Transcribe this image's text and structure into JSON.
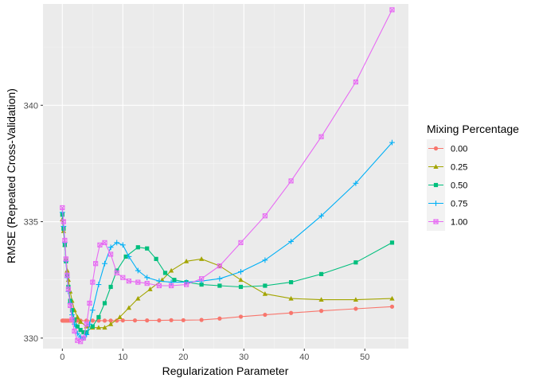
{
  "chart_data": {
    "type": "line",
    "title": "",
    "xlabel": "Regularization Parameter",
    "ylabel": "RMSE (Repeated Cross-Validation)",
    "xlim": [
      -3.2,
      57.2
    ],
    "ylim": [
      329.55,
      344.35
    ],
    "x_ticks": [
      0,
      10,
      20,
      30,
      40,
      50
    ],
    "x_tick_labels": [
      "0",
      "10",
      "20",
      "30",
      "40",
      "50"
    ],
    "y_ticks": [
      330,
      335,
      340
    ],
    "y_tick_labels": [
      "330",
      "335",
      "340"
    ],
    "grid": true,
    "legend": {
      "title": "Mixing Percentage",
      "placement": "right"
    },
    "series": [
      {
        "name": "0.00",
        "color": "#F8766D",
        "marker": "circle",
        "x": [
          0.0,
          0.1,
          0.2,
          0.4,
          0.6,
          0.8,
          1.0,
          1.3,
          1.6,
          2.0,
          2.5,
          3.0,
          4.0,
          5.0,
          6.0,
          7.0,
          8.0,
          9.0,
          10.0,
          12.0,
          14.0,
          16.0,
          18.0,
          20.0,
          23.0,
          26.0,
          29.5,
          33.5,
          37.8,
          42.8,
          48.5,
          54.5
        ],
        "y": [
          330.75,
          330.75,
          330.75,
          330.75,
          330.75,
          330.75,
          330.75,
          330.75,
          330.75,
          330.75,
          330.75,
          330.75,
          330.75,
          330.75,
          330.75,
          330.75,
          330.75,
          330.75,
          330.76,
          330.76,
          330.76,
          330.76,
          330.77,
          330.77,
          330.78,
          330.84,
          330.92,
          331.0,
          331.08,
          331.17,
          331.26,
          331.35
        ]
      },
      {
        "name": "0.25",
        "color": "#A3A500",
        "marker": "triangle",
        "x": [
          0.0,
          0.2,
          0.4,
          0.6,
          0.8,
          1.0,
          1.3,
          1.6,
          2.0,
          2.5,
          3.0,
          4.0,
          5.0,
          6.0,
          7.0,
          8.0,
          9.5,
          11.0,
          12.5,
          14.5,
          16.5,
          18.0,
          20.5,
          23.0,
          26.0,
          29.5,
          33.5,
          37.8,
          42.8,
          48.5,
          54.5
        ],
        "y": [
          335.1,
          334.6,
          334.0,
          333.4,
          332.9,
          332.5,
          332.0,
          331.6,
          331.2,
          330.9,
          330.7,
          330.5,
          330.45,
          330.45,
          330.45,
          330.6,
          330.9,
          331.3,
          331.7,
          332.1,
          332.5,
          332.9,
          333.3,
          333.4,
          333.1,
          332.5,
          331.9,
          331.7,
          331.65,
          331.65,
          331.7
        ]
      },
      {
        "name": "0.50",
        "color": "#00BF7D",
        "marker": "square",
        "x": [
          0.0,
          0.2,
          0.4,
          0.6,
          0.8,
          1.0,
          1.3,
          1.6,
          2.0,
          2.5,
          3.0,
          3.5,
          4.0,
          5.0,
          6.0,
          7.0,
          8.0,
          9.0,
          10.5,
          12.5,
          14.0,
          15.5,
          17.0,
          18.5,
          20.5,
          23.0,
          26.0,
          29.5,
          33.5,
          37.8,
          42.8,
          48.5,
          54.5
        ],
        "y": [
          335.3,
          334.7,
          334.0,
          333.3,
          332.7,
          332.2,
          331.6,
          331.2,
          330.8,
          330.5,
          330.35,
          330.25,
          330.25,
          330.5,
          330.9,
          331.5,
          332.2,
          332.9,
          333.5,
          333.9,
          333.85,
          333.4,
          332.8,
          332.5,
          332.4,
          332.3,
          332.25,
          332.2,
          332.25,
          332.4,
          332.75,
          333.25,
          334.1
        ]
      },
      {
        "name": "0.75",
        "color": "#00B0F6",
        "marker": "plus",
        "x": [
          0.0,
          0.2,
          0.4,
          0.6,
          0.8,
          1.0,
          1.3,
          1.6,
          2.0,
          2.5,
          3.0,
          3.5,
          4.0,
          4.5,
          5.0,
          6.0,
          7.0,
          8.0,
          9.0,
          10.0,
          11.0,
          12.5,
          14.0,
          16.0,
          18.0,
          20.5,
          23.0,
          26.0,
          29.5,
          33.5,
          37.8,
          42.8,
          48.5,
          54.5
        ],
        "y": [
          335.4,
          334.8,
          334.1,
          333.3,
          332.6,
          332.0,
          331.5,
          331.0,
          330.6,
          330.2,
          330.05,
          330.0,
          330.15,
          330.6,
          331.2,
          332.3,
          333.2,
          333.9,
          334.1,
          334.0,
          333.5,
          332.9,
          332.6,
          332.45,
          332.4,
          332.4,
          332.45,
          332.55,
          332.85,
          333.35,
          334.15,
          335.25,
          336.65,
          338.4
        ]
      },
      {
        "name": "1.00",
        "color": "#E76BF3",
        "marker": "boxx",
        "x": [
          0.0,
          0.2,
          0.4,
          0.6,
          0.8,
          1.0,
          1.3,
          1.6,
          2.0,
          2.5,
          3.0,
          3.5,
          4.0,
          4.5,
          5.0,
          5.5,
          6.2,
          7.0,
          8.0,
          9.0,
          10.0,
          11.0,
          12.5,
          14.0,
          16.0,
          18.0,
          20.5,
          23.0,
          26.0,
          29.5,
          33.5,
          37.8,
          42.8,
          48.5,
          54.5
        ],
        "y": [
          335.6,
          335.0,
          334.2,
          333.4,
          332.7,
          332.1,
          331.4,
          330.8,
          330.3,
          329.9,
          329.85,
          330.0,
          330.6,
          331.5,
          332.4,
          333.2,
          334.0,
          334.1,
          333.6,
          332.8,
          332.6,
          332.45,
          332.4,
          332.35,
          332.25,
          332.25,
          332.3,
          332.55,
          333.1,
          334.1,
          335.25,
          336.75,
          338.65,
          341.0,
          344.1
        ]
      }
    ]
  }
}
